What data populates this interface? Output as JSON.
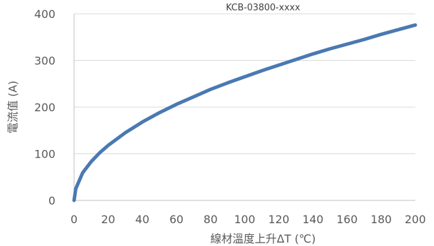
{
  "chart_data": {
    "type": "line",
    "title": "KCB-03800-xxxx",
    "xlabel": "線材溫度上升ΔT (℃)",
    "ylabel": "電流值 (A)",
    "xlim": [
      0,
      200
    ],
    "ylim": [
      0,
      400
    ],
    "x_ticks": [
      0,
      20,
      40,
      60,
      80,
      100,
      120,
      140,
      160,
      180,
      200
    ],
    "y_ticks": [
      0,
      100,
      200,
      300,
      400
    ],
    "grid": "horizontal",
    "legend": "none",
    "series": [
      {
        "color": "#4a79b2",
        "x": [
          0,
          1,
          5,
          10,
          15,
          20,
          30,
          40,
          50,
          60,
          70,
          80,
          90,
          100,
          110,
          120,
          130,
          140,
          150,
          160,
          170,
          180,
          190,
          200
        ],
        "y": [
          0,
          25,
          59,
          83,
          102,
          118,
          145,
          168,
          188,
          206,
          222,
          238,
          252,
          265,
          278,
          290,
          302,
          314,
          325,
          335,
          345,
          356,
          366,
          376
        ]
      }
    ]
  }
}
